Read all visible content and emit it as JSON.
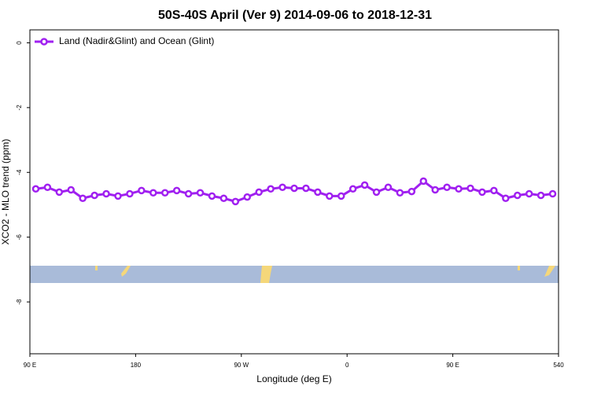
{
  "chart_data": {
    "type": "line",
    "title": "50S-40S April (Ver 9)   2014-09-06 to 2018-12-31",
    "x_label": "Longitude (deg E)",
    "y_label": "XCO2 - MLO trend (ppm)",
    "x": [
      95,
      105,
      115,
      125,
      135,
      145,
      155,
      165,
      175,
      185,
      195,
      205,
      215,
      225,
      235,
      245,
      255,
      265,
      275,
      285,
      295,
      305,
      315,
      325,
      335,
      345,
      355,
      365,
      375,
      385,
      395,
      405,
      415,
      425,
      435,
      445,
      455,
      465,
      475,
      485,
      495,
      505,
      515,
      525,
      535
    ],
    "series": [
      {
        "name": "Land (Nadir&Glint) and Ocean (Glint)",
        "color": "#a020f0",
        "values": [
          -4.51,
          -4.46,
          -4.61,
          -4.54,
          -4.8,
          -4.71,
          -4.66,
          -4.73,
          -4.66,
          -4.56,
          -4.63,
          -4.63,
          -4.56,
          -4.66,
          -4.63,
          -4.73,
          -4.8,
          -4.9,
          -4.76,
          -4.61,
          -4.51,
          -4.46,
          -4.49,
          -4.49,
          -4.61,
          -4.73,
          -4.73,
          -4.51,
          -4.39,
          -4.61,
          -4.46,
          -4.63,
          -4.59,
          -4.27,
          -4.54,
          -4.46,
          -4.51,
          -4.49,
          -4.61,
          -4.56,
          -4.8,
          -4.71,
          -4.66,
          -4.71,
          -4.66
        ]
      }
    ],
    "xlim": [
      90,
      540
    ],
    "xticks": [
      {
        "value": 90,
        "label": "90 E"
      },
      180,
      {
        "value": 270,
        "label": "90 W"
      },
      {
        "value": 360,
        "label": "0"
      },
      {
        "value": 450,
        "label": "90 E"
      },
      540
    ],
    "ylim": [
      -9.6,
      0.4
    ],
    "yticks": [
      0,
      -2,
      -4,
      -6,
      -8
    ],
    "legend": "top-left"
  }
}
